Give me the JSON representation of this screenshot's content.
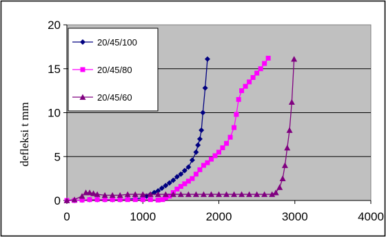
{
  "chart_data": {
    "type": "line",
    "title": "",
    "xlabel": "",
    "ylabel": "defleksi t mm",
    "xlim": [
      0,
      4000
    ],
    "ylim": [
      0,
      20
    ],
    "x_ticks": [
      0,
      1000,
      2000,
      3000,
      4000
    ],
    "y_ticks": [
      0,
      5,
      10,
      15,
      20
    ],
    "grid": "horizontal",
    "plot_background": "#c0c0c0",
    "legend_position": "top-left",
    "series": [
      {
        "name": "20/45/100",
        "color": "#000080",
        "marker": "diamond",
        "points": [
          [
            0,
            0.0
          ],
          [
            100,
            0.0
          ],
          [
            200,
            0.05
          ],
          [
            300,
            0.1
          ],
          [
            400,
            0.1
          ],
          [
            500,
            0.1
          ],
          [
            600,
            0.1
          ],
          [
            700,
            0.1
          ],
          [
            800,
            0.15
          ],
          [
            900,
            0.2
          ],
          [
            1000,
            0.3
          ],
          [
            1050,
            0.5
          ],
          [
            1100,
            0.7
          ],
          [
            1150,
            0.9
          ],
          [
            1200,
            1.1
          ],
          [
            1250,
            1.4
          ],
          [
            1300,
            1.7
          ],
          [
            1350,
            2.0
          ],
          [
            1400,
            2.3
          ],
          [
            1450,
            2.7
          ],
          [
            1500,
            3.0
          ],
          [
            1550,
            3.4
          ],
          [
            1600,
            3.8
          ],
          [
            1650,
            4.6
          ],
          [
            1700,
            5.5
          ],
          [
            1725,
            6.3
          ],
          [
            1750,
            7.0
          ],
          [
            1770,
            8.0
          ],
          [
            1790,
            10.0
          ],
          [
            1820,
            12.8
          ],
          [
            1850,
            16.1
          ]
        ]
      },
      {
        "name": "20/45/80",
        "color": "#ff00ff",
        "marker": "square",
        "points": [
          [
            0,
            0.0
          ],
          [
            100,
            0.0
          ],
          [
            200,
            0.05
          ],
          [
            300,
            0.1
          ],
          [
            400,
            0.1
          ],
          [
            500,
            0.1
          ],
          [
            600,
            0.1
          ],
          [
            700,
            0.1
          ],
          [
            800,
            0.1
          ],
          [
            900,
            0.1
          ],
          [
            1000,
            0.1
          ],
          [
            1100,
            0.1
          ],
          [
            1200,
            0.05
          ],
          [
            1260,
            0.1
          ],
          [
            1300,
            0.3
          ],
          [
            1350,
            0.5
          ],
          [
            1400,
            0.9
          ],
          [
            1450,
            1.3
          ],
          [
            1500,
            1.6
          ],
          [
            1550,
            1.9
          ],
          [
            1600,
            2.2
          ],
          [
            1650,
            2.5
          ],
          [
            1700,
            3.0
          ],
          [
            1750,
            3.5
          ],
          [
            1800,
            4.0
          ],
          [
            1850,
            4.3
          ],
          [
            1900,
            4.7
          ],
          [
            1950,
            5.1
          ],
          [
            2000,
            5.5
          ],
          [
            2050,
            6.0
          ],
          [
            2100,
            6.5
          ],
          [
            2150,
            7.2
          ],
          [
            2200,
            8.3
          ],
          [
            2230,
            9.8
          ],
          [
            2260,
            11.5
          ],
          [
            2300,
            12.5
          ],
          [
            2350,
            13.0
          ],
          [
            2400,
            13.5
          ],
          [
            2450,
            14.0
          ],
          [
            2500,
            14.5
          ],
          [
            2550,
            15.0
          ],
          [
            2600,
            15.6
          ],
          [
            2650,
            16.2
          ]
        ]
      },
      {
        "name": "20/45/60",
        "color": "#800080",
        "marker": "triangle",
        "points": [
          [
            0,
            0.0
          ],
          [
            100,
            0.1
          ],
          [
            200,
            0.5
          ],
          [
            250,
            0.9
          ],
          [
            300,
            0.9
          ],
          [
            350,
            0.8
          ],
          [
            400,
            0.7
          ],
          [
            500,
            0.6
          ],
          [
            600,
            0.6
          ],
          [
            700,
            0.6
          ],
          [
            800,
            0.7
          ],
          [
            900,
            0.7
          ],
          [
            1000,
            0.7
          ],
          [
            1100,
            0.7
          ],
          [
            1200,
            0.7
          ],
          [
            1300,
            0.7
          ],
          [
            1400,
            0.7
          ],
          [
            1500,
            0.7
          ],
          [
            1600,
            0.7
          ],
          [
            1700,
            0.7
          ],
          [
            1800,
            0.7
          ],
          [
            1900,
            0.7
          ],
          [
            2000,
            0.7
          ],
          [
            2100,
            0.7
          ],
          [
            2200,
            0.7
          ],
          [
            2300,
            0.7
          ],
          [
            2400,
            0.7
          ],
          [
            2500,
            0.7
          ],
          [
            2600,
            0.7
          ],
          [
            2700,
            0.7
          ],
          [
            2750,
            0.9
          ],
          [
            2800,
            1.5
          ],
          [
            2840,
            2.5
          ],
          [
            2870,
            4.0
          ],
          [
            2900,
            6.0
          ],
          [
            2930,
            8.0
          ],
          [
            2960,
            11.2
          ],
          [
            2990,
            16.1
          ]
        ]
      }
    ]
  }
}
